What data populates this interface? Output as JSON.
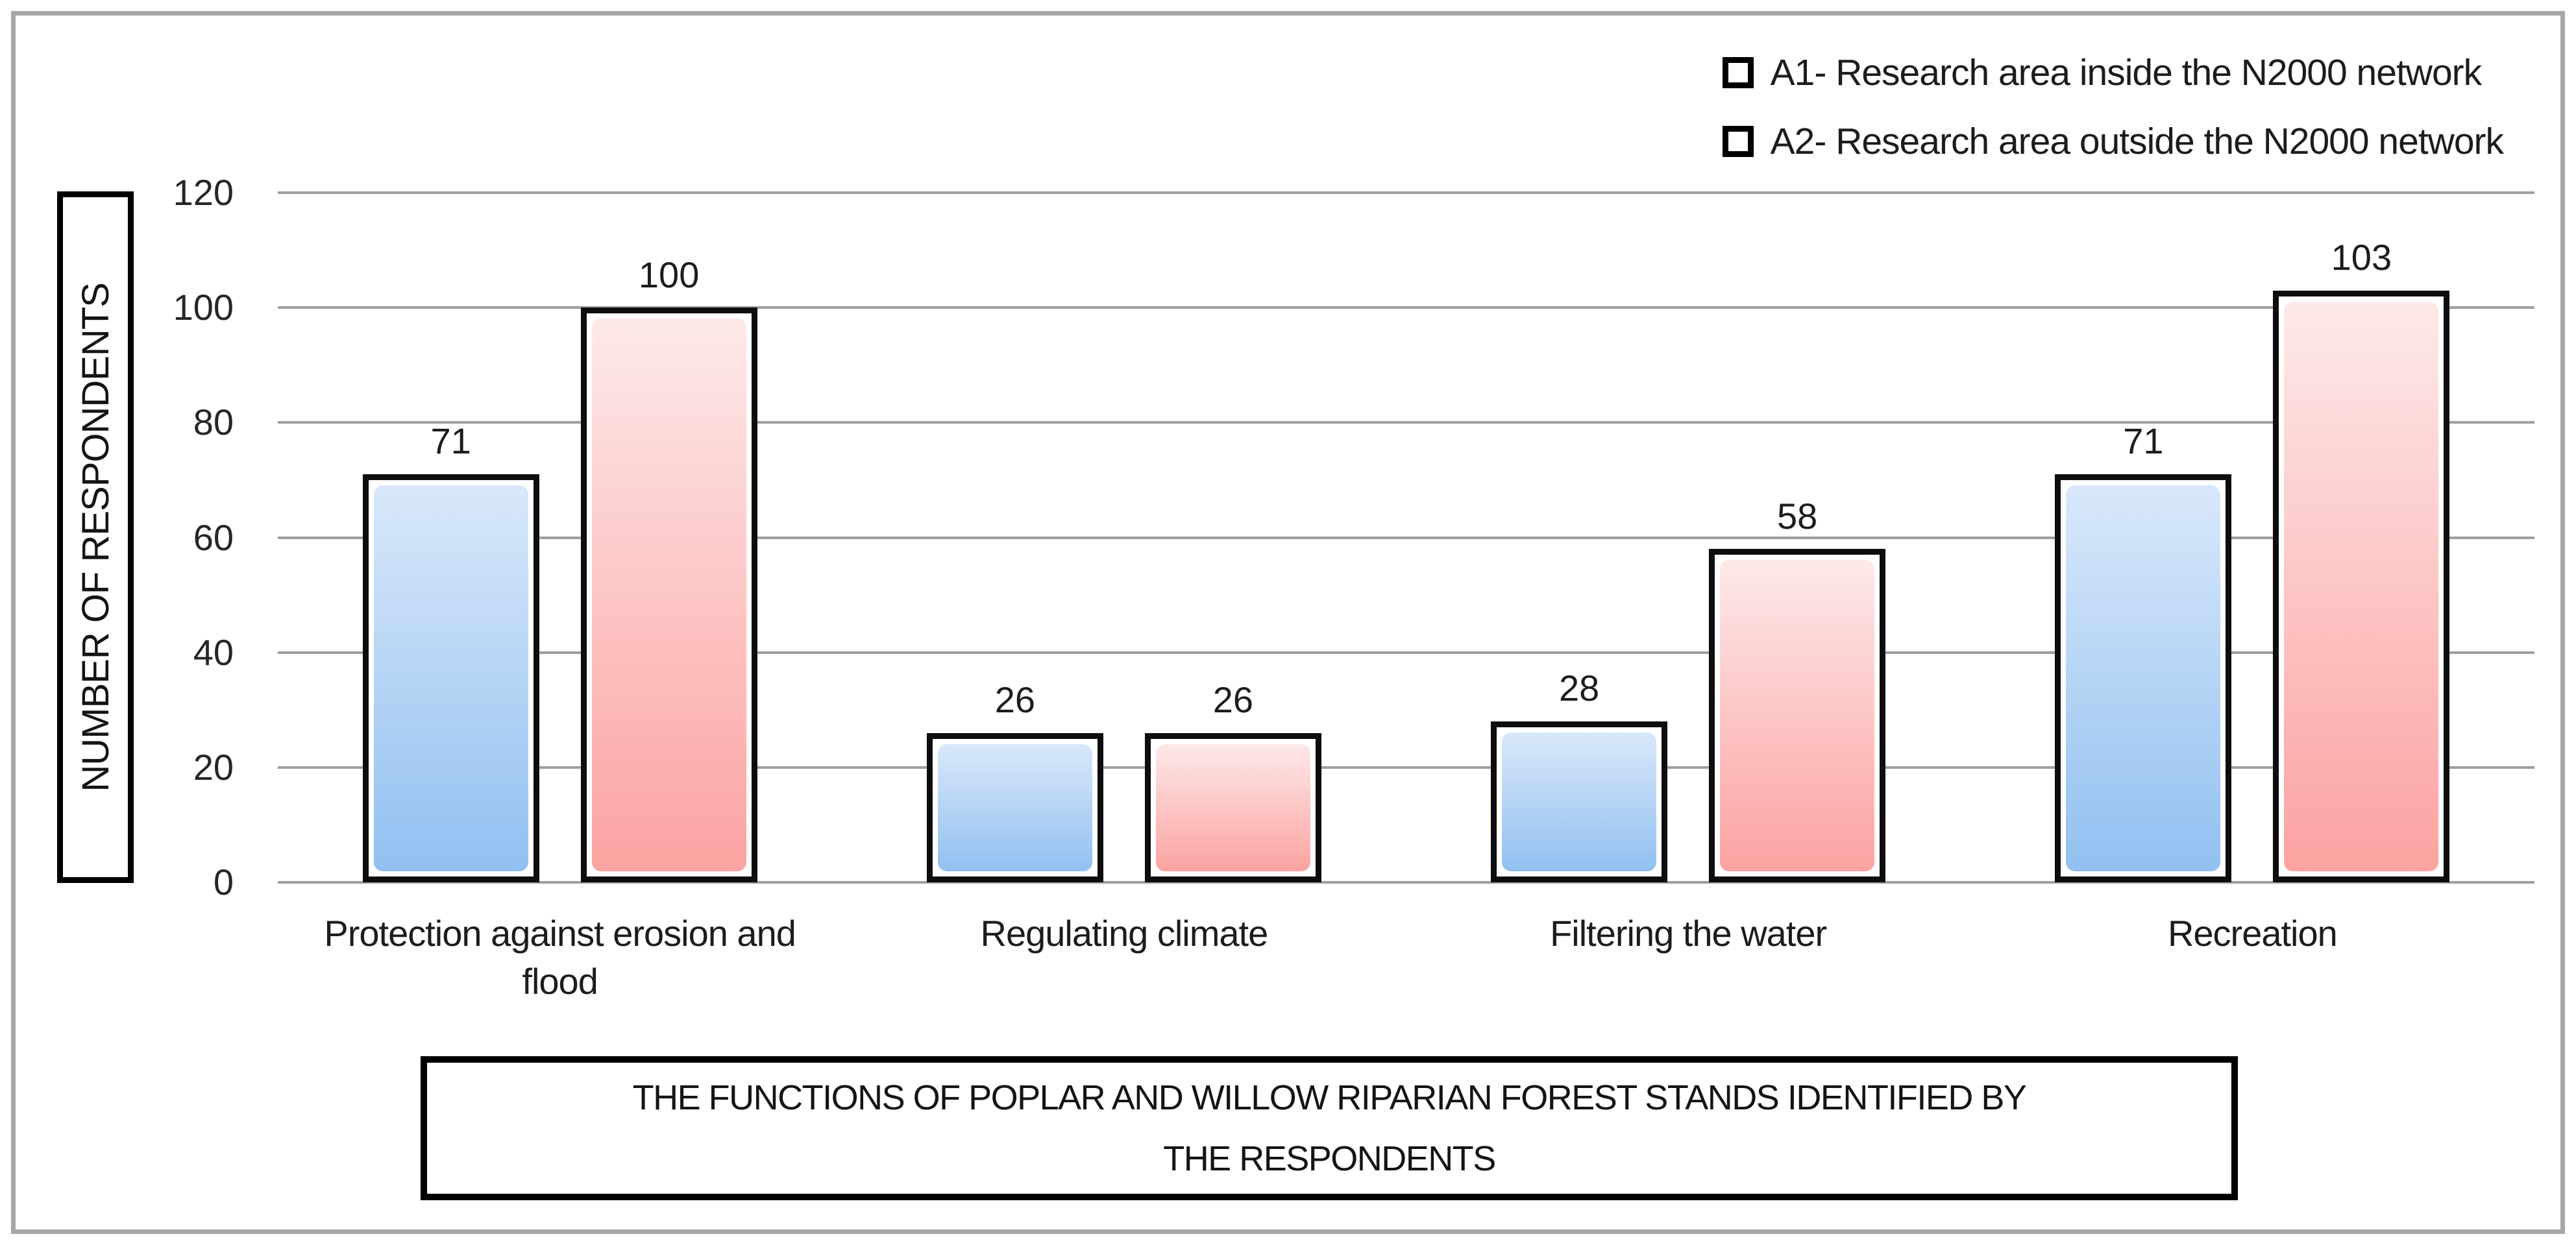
{
  "figure": {
    "outer_border_color": "#a7a7a7",
    "background": "#ffffff",
    "gridline_color": "#9e9e9e",
    "bar_border_color": "#0d0d0d",
    "text_color": "#1c1c1c"
  },
  "legend": {
    "items": [
      {
        "series": "A1",
        "label": "A1- Research area inside the N2000 network",
        "swatch_color": "#badbf7"
      },
      {
        "series": "A2",
        "label": "A2- Research area outside the N2000 network",
        "swatch_color": "#f9c2c1"
      }
    ]
  },
  "chart_data": {
    "type": "bar",
    "title": "",
    "xlabel": "THE FUNCTIONS OF POPLAR AND WILLOW RIPARIAN FOREST STANDS IDENTIFIED BY THE RESPONDENTS",
    "ylabel": "NUMBER OF RESPONDENTS",
    "categories": [
      "Protection against erosion and flood",
      "Regulating climate",
      "Filtering the water",
      "Recreation"
    ],
    "series": [
      {
        "name": "A1- Research area inside the N2000 network",
        "values": [
          71,
          26,
          28,
          71
        ],
        "fill_top": "#d9e8fa",
        "fill_bottom": "#92c0f0"
      },
      {
        "name": "A2- Research area outside the N2000 network",
        "values": [
          100,
          26,
          58,
          103
        ],
        "fill_top": "#fde9e9",
        "fill_bottom": "#fba3a1"
      }
    ],
    "y_ticks": [
      0,
      20,
      40,
      60,
      80,
      100,
      120
    ],
    "ylim": [
      0,
      120
    ],
    "grid": true,
    "legend_position": "top-right",
    "data_labels": true
  }
}
